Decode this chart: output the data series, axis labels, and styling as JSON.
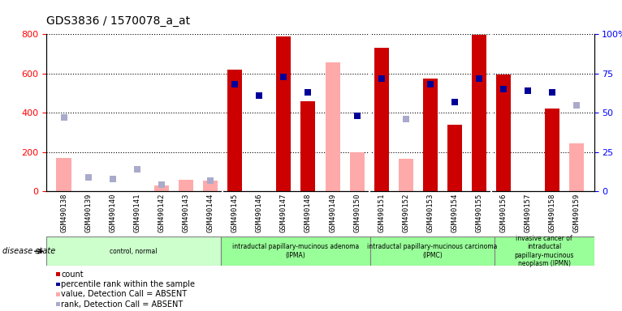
{
  "title": "GDS3836 / 1570078_a_at",
  "samples": [
    "GSM490138",
    "GSM490139",
    "GSM490140",
    "GSM490141",
    "GSM490142",
    "GSM490143",
    "GSM490144",
    "GSM490145",
    "GSM490146",
    "GSM490147",
    "GSM490148",
    "GSM490149",
    "GSM490150",
    "GSM490151",
    "GSM490152",
    "GSM490153",
    "GSM490154",
    "GSM490155",
    "GSM490156",
    "GSM490157",
    "GSM490158",
    "GSM490159"
  ],
  "count": [
    0,
    0,
    0,
    0,
    0,
    0,
    0,
    620,
    0,
    790,
    460,
    0,
    0,
    730,
    0,
    575,
    340,
    795,
    595,
    0,
    420,
    0
  ],
  "rank_pct": [
    null,
    null,
    null,
    null,
    null,
    null,
    null,
    68,
    61,
    73,
    63,
    null,
    48,
    72,
    null,
    68,
    57,
    72,
    65,
    64,
    63,
    null
  ],
  "absent_value": [
    170,
    null,
    null,
    null,
    30,
    60,
    55,
    null,
    null,
    null,
    null,
    655,
    200,
    null,
    165,
    null,
    null,
    null,
    null,
    null,
    null,
    245
  ],
  "absent_rank_pct": [
    47,
    9,
    8,
    14,
    4,
    null,
    7,
    null,
    null,
    null,
    null,
    null,
    null,
    null,
    46,
    null,
    null,
    null,
    null,
    null,
    null,
    55
  ],
  "groups": [
    {
      "label": "control, normal",
      "start": 0,
      "end": 7
    },
    {
      "label": "intraductal papillary-mucinous adenoma\n(IPMA)",
      "start": 7,
      "end": 13
    },
    {
      "label": "intraductal papillary-mucinous carcinoma\n(IPMC)",
      "start": 13,
      "end": 18
    },
    {
      "label": "invasive cancer of\nintraductal\npapillary-mucinous\nneoplasm (IPMN)",
      "start": 18,
      "end": 22
    }
  ],
  "group_colors": [
    "#ccffcc",
    "#99ff99",
    "#99ff99",
    "#99ff99"
  ],
  "ylim_left": [
    0,
    800
  ],
  "ylim_right": [
    0,
    100
  ],
  "yticks_left": [
    0,
    200,
    400,
    600,
    800
  ],
  "yticks_right": [
    0,
    25,
    50,
    75,
    100
  ],
  "count_color": "#cc0000",
  "rank_color": "#000099",
  "absent_value_color": "#ffaaaa",
  "absent_rank_color": "#aaaacc",
  "bar_width": 0.6
}
